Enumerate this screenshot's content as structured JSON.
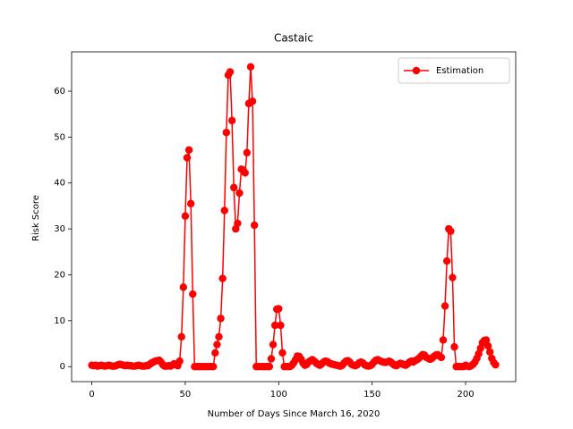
{
  "chart_data": {
    "type": "line",
    "title": "Castaic",
    "xlabel": "Number of Days Since March 16, 2020",
    "ylabel": "Risk Score",
    "x": [
      0,
      1,
      2,
      3,
      4,
      5,
      6,
      7,
      8,
      9,
      10,
      11,
      12,
      13,
      14,
      15,
      16,
      17,
      18,
      19,
      20,
      21,
      22,
      23,
      24,
      25,
      26,
      27,
      28,
      29,
      30,
      31,
      32,
      33,
      34,
      35,
      36,
      37,
      38,
      39,
      40,
      41,
      42,
      43,
      44,
      45,
      46,
      47,
      48,
      49,
      50,
      51,
      52,
      53,
      54,
      55,
      56,
      57,
      58,
      59,
      60,
      61,
      62,
      63,
      64,
      65,
      66,
      67,
      68,
      69,
      70,
      71,
      72,
      73,
      74,
      75,
      76,
      77,
      78,
      79,
      80,
      81,
      82,
      83,
      84,
      85,
      86,
      87,
      88,
      89,
      90,
      91,
      92,
      93,
      94,
      95,
      96,
      97,
      98,
      99,
      100,
      101,
      102,
      103,
      104,
      105,
      106,
      107,
      108,
      109,
      110,
      111,
      112,
      113,
      114,
      115,
      116,
      117,
      118,
      119,
      120,
      121,
      122,
      123,
      124,
      125,
      126,
      127,
      128,
      129,
      130,
      131,
      132,
      133,
      134,
      135,
      136,
      137,
      138,
      139,
      140,
      141,
      142,
      143,
      144,
      145,
      146,
      147,
      148,
      149,
      150,
      151,
      152,
      153,
      154,
      155,
      156,
      157,
      158,
      159,
      160,
      161,
      162,
      163,
      164,
      165,
      166,
      167,
      168,
      169,
      170,
      171,
      172,
      173,
      174,
      175,
      176,
      177,
      178,
      179,
      180,
      181,
      182,
      183,
      184,
      185,
      186,
      187,
      188,
      189,
      190,
      191,
      192,
      193,
      194,
      195,
      196,
      197,
      198,
      199,
      200,
      201,
      202,
      203,
      204,
      205,
      206,
      207,
      208,
      209,
      210,
      211,
      212,
      213,
      214,
      215,
      216
    ],
    "series": [
      {
        "name": "Estimation",
        "color": "#ff0000",
        "values": [
          0.3,
          0.2,
          0.3,
          0.1,
          0.2,
          0.3,
          0.2,
          0.1,
          0.2,
          0.3,
          0.2,
          0.1,
          0.1,
          0.2,
          0.4,
          0.5,
          0.4,
          0.3,
          0.2,
          0.3,
          0.2,
          0.2,
          0.1,
          0.1,
          0.2,
          0.3,
          0.2,
          0.1,
          0.1,
          0.2,
          0.2,
          0.5,
          0.8,
          1.0,
          1.2,
          1.3,
          1.4,
          1.0,
          0.4,
          0.1,
          0.1,
          0.2,
          0.1,
          0.3,
          0.6,
          0.4,
          0.2,
          1.2,
          6.5,
          17.3,
          32.8,
          45.5,
          47.2,
          35.5,
          15.8,
          0,
          0,
          0,
          0,
          0,
          0,
          0,
          0,
          0,
          0,
          0,
          3.0,
          4.8,
          6.5,
          10.5,
          19.2,
          34.0,
          51.0,
          63.5,
          64.2,
          53.6,
          39.0,
          30.0,
          31.2,
          37.8,
          43.0,
          42.8,
          42.2,
          46.6,
          57.3,
          65.3,
          57.8,
          30.8,
          0,
          0,
          0,
          0,
          0,
          0,
          0,
          0,
          1.7,
          4.8,
          9.0,
          12.5,
          12.6,
          9.0,
          3.0,
          0,
          0,
          0,
          0,
          0.3,
          0.8,
          1.5,
          2.3,
          2.2,
          1.6,
          0.8,
          0.3,
          0.5,
          1.0,
          1.3,
          1.5,
          1.2,
          0.8,
          0.5,
          0.3,
          0.6,
          1.0,
          1.2,
          1.1,
          0.8,
          0.6,
          0.5,
          0.4,
          0.3,
          0.2,
          0.1,
          0.3,
          0.8,
          1.2,
          1.3,
          1.0,
          0.5,
          0.3,
          0.2,
          0.4,
          0.8,
          1.0,
          0.8,
          0.4,
          0.2,
          0.1,
          0.2,
          0.5,
          1.0,
          1.4,
          1.5,
          1.3,
          1.1,
          1.0,
          0.9,
          1.0,
          1.2,
          1.0,
          0.6,
          0.3,
          0.2,
          0.5,
          0.7,
          0.6,
          0.4,
          0.3,
          0.6,
          1.0,
          1.2,
          1.0,
          1.3,
          1.5,
          1.8,
          2.2,
          2.6,
          2.5,
          2.0,
          1.8,
          1.6,
          1.8,
          2.2,
          2.5,
          2.6,
          2.3,
          2.0,
          5.8,
          13.2,
          23.0,
          30.0,
          29.5,
          19.4,
          4.3,
          0,
          0,
          0,
          0,
          0,
          0.3,
          0.1,
          0,
          0.2,
          0.5,
          1.0,
          1.8,
          2.8,
          4.0,
          5.2,
          5.7,
          5.8,
          4.5,
          3.2,
          1.8,
          0.9,
          0.4
        ]
      }
    ],
    "xlim": [
      -10.8,
      226.8
    ],
    "ylim": [
      -3.27,
      68.57
    ],
    "xticks": [
      0,
      50,
      100,
      150,
      200
    ],
    "yticks": [
      0,
      10,
      20,
      30,
      40,
      50,
      60
    ],
    "legend": "upper right"
  }
}
